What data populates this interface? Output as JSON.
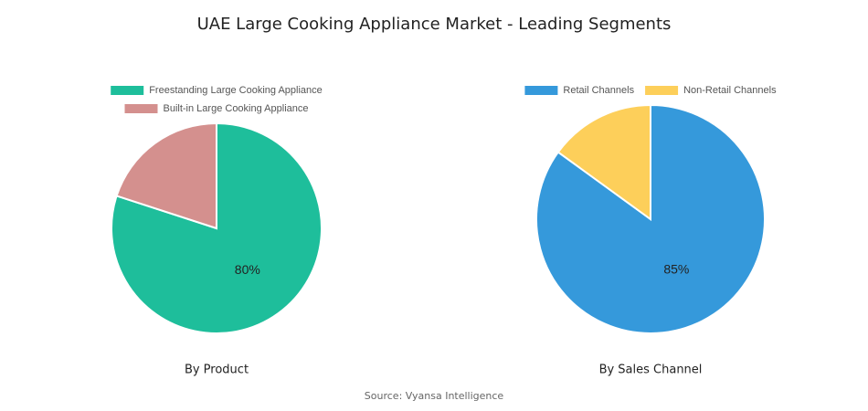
{
  "title": "UAE Large Cooking Appliance Market - Leading Segments",
  "source": "Source: Vyansa Intelligence",
  "chart_data": [
    {
      "type": "pie",
      "caption": "By Product",
      "categories": [
        "Freestanding Large Cooking Appliance",
        "Built-in Large Cooking Appliance"
      ],
      "values": [
        80,
        20
      ],
      "value_labels": [
        "80%",
        null
      ],
      "colors": [
        "#1ebe9b",
        "#d4908e"
      ]
    },
    {
      "type": "pie",
      "caption": "By Sales Channel",
      "categories": [
        "Retail Channels",
        "Non-Retail Channels"
      ],
      "values": [
        85,
        15
      ],
      "value_labels": [
        "85%",
        null
      ],
      "colors": [
        "#3599db",
        "#fdcf5a"
      ]
    }
  ]
}
